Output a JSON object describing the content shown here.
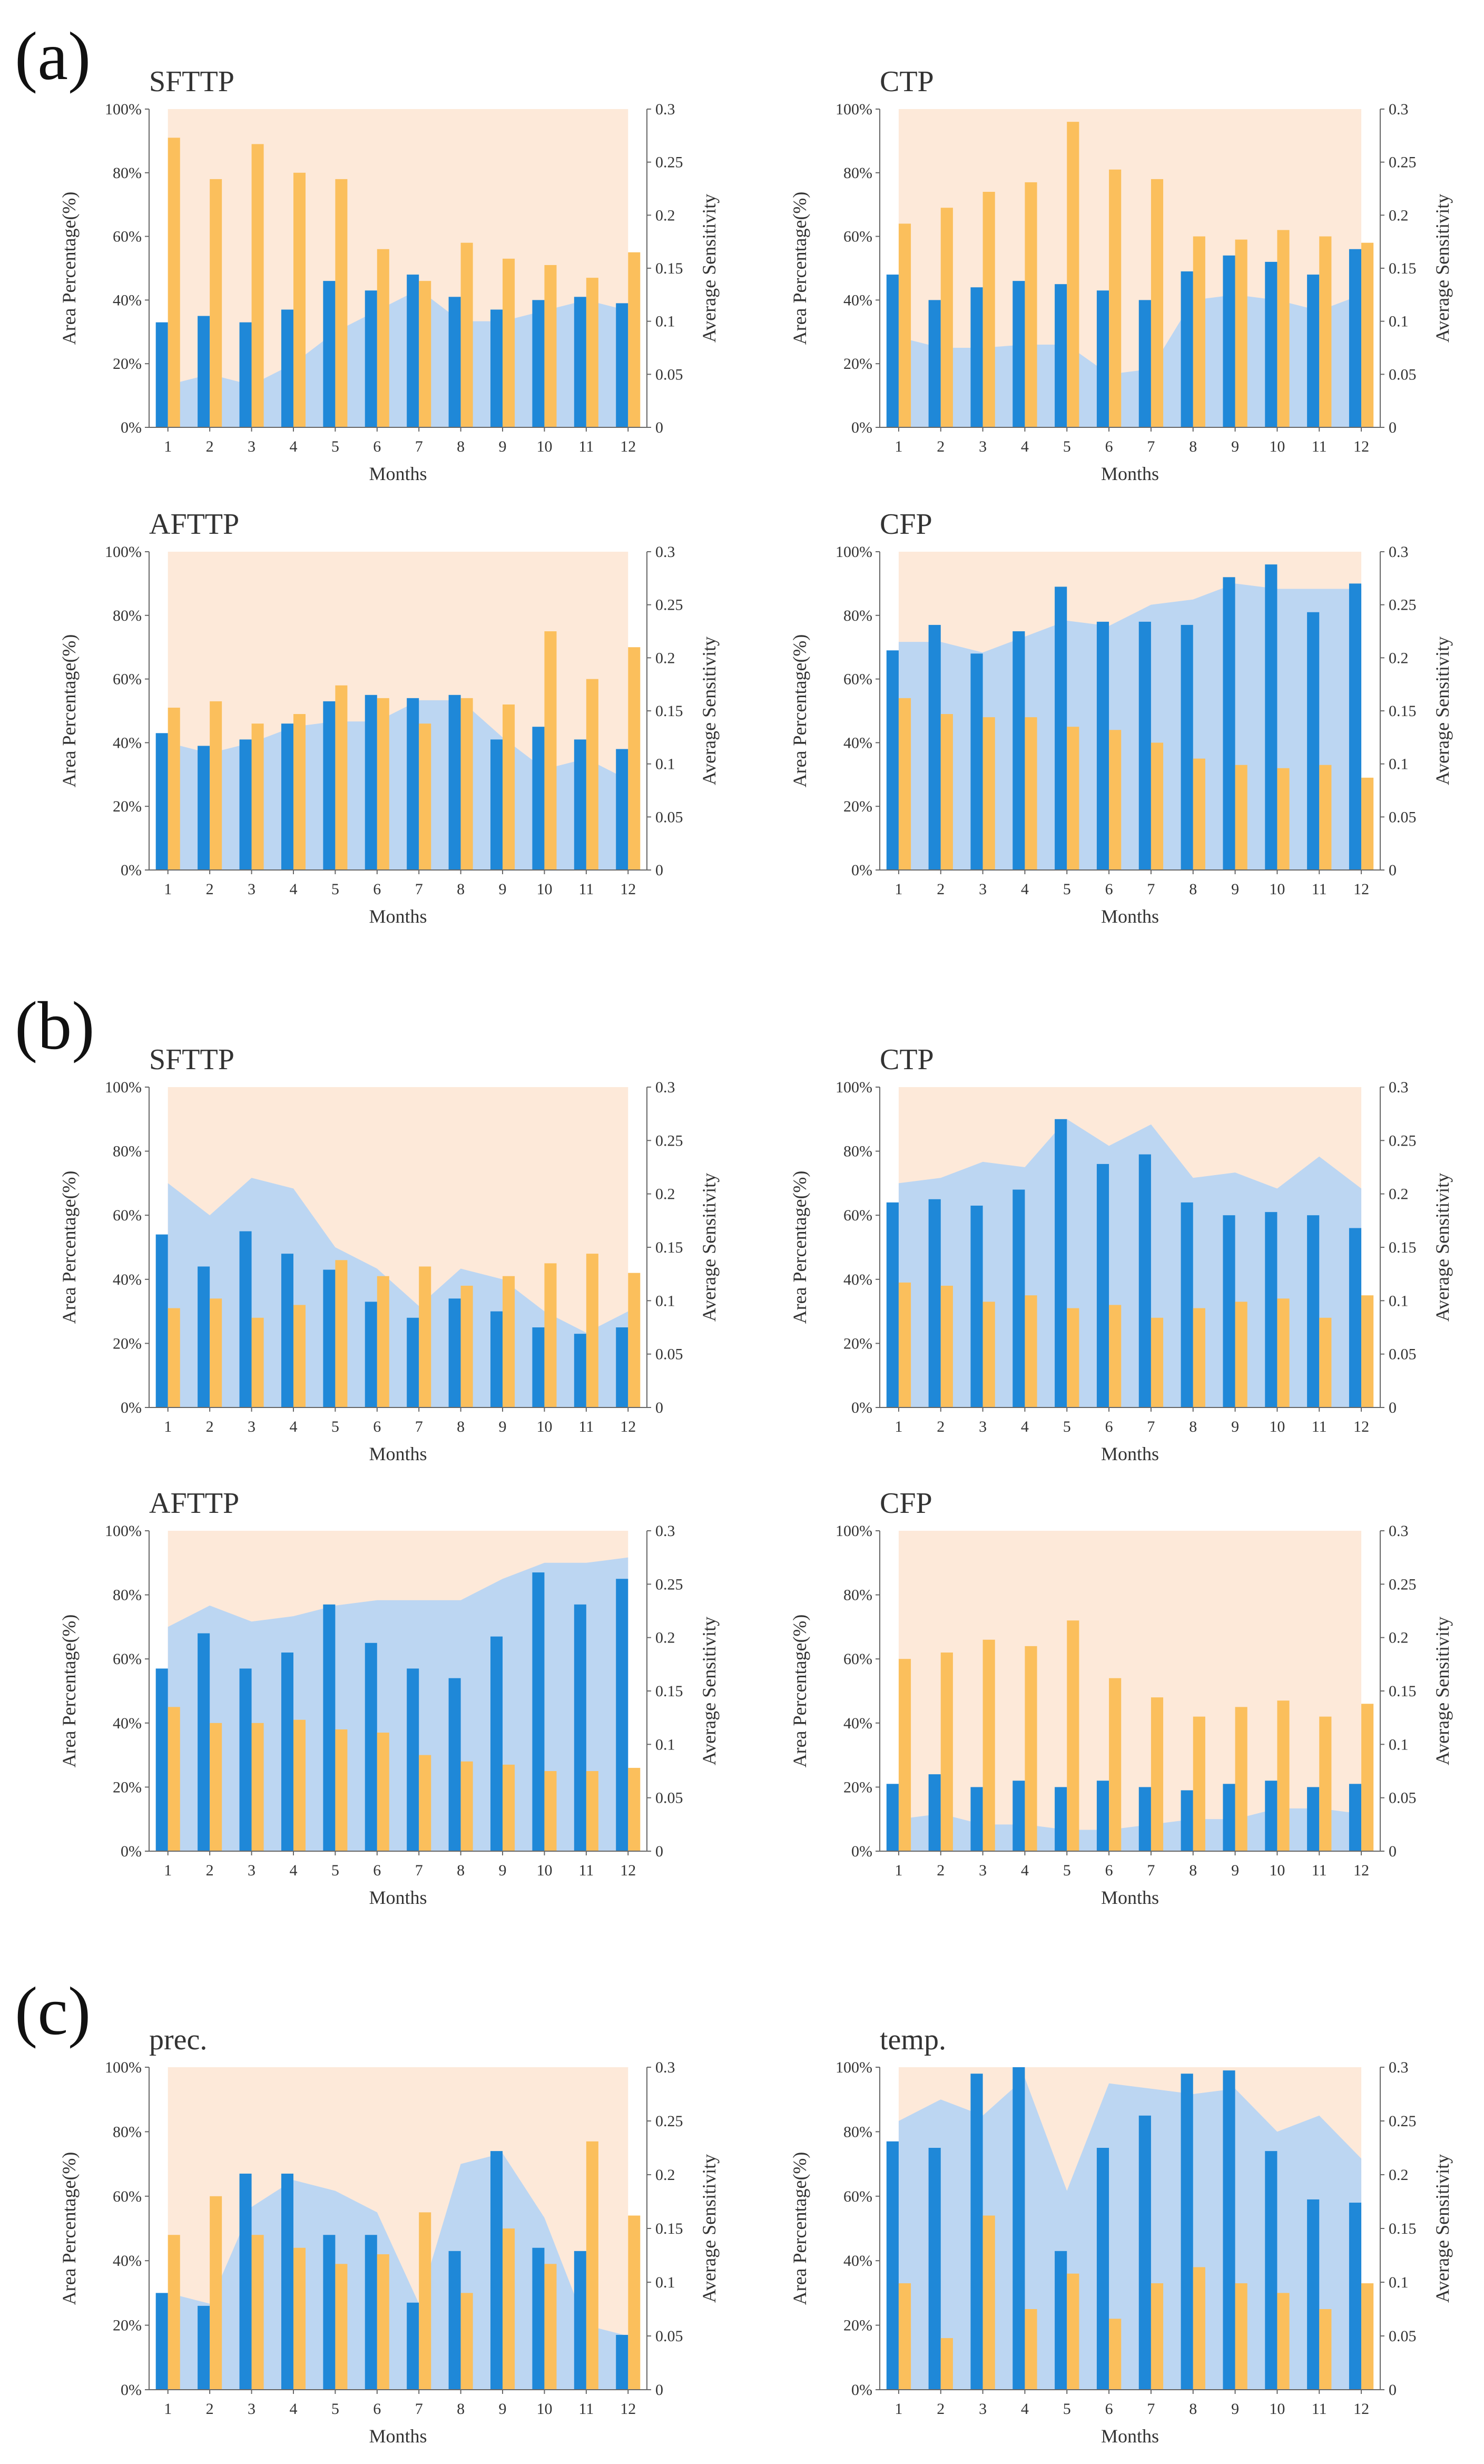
{
  "panels": [
    {
      "label": "(a)"
    },
    {
      "label": "(b)"
    },
    {
      "label": "(c)"
    }
  ],
  "colors": {
    "background_band": "#fde9d9",
    "area_fill": "#bcd6f2",
    "bar_blue": "#1f88d8",
    "bar_orange": "#fbbf5c"
  },
  "chart_data": [
    {
      "type": "bar",
      "panel": "(a)",
      "title": "SFTTP",
      "xlabel": "Months",
      "ylabel": "Area Percentage(%)",
      "y2label": "Average Sensitivity",
      "categories": [
        "1",
        "2",
        "3",
        "4",
        "5",
        "6",
        "7",
        "8",
        "9",
        "10",
        "11",
        "12"
      ],
      "ylim": [
        0,
        100
      ],
      "yticks": [
        "0%",
        "20%",
        "40%",
        "60%",
        "80%",
        "100%"
      ],
      "y2lim": [
        0,
        0.3
      ],
      "y2ticks": [
        "0",
        "0.05",
        "0.1",
        "0.15",
        "0.2",
        "0.25",
        "0.3"
      ],
      "series": [
        {
          "kind": "area",
          "axis": "y2",
          "values": [
            0.04,
            0.05,
            0.04,
            0.06,
            0.09,
            0.11,
            0.13,
            0.1,
            0.1,
            0.11,
            0.12,
            0.11
          ]
        },
        {
          "kind": "bar",
          "axis": "y",
          "values": [
            33,
            35,
            33,
            37,
            46,
            43,
            48,
            41,
            37,
            40,
            41,
            39
          ]
        },
        {
          "kind": "bar",
          "axis": "y",
          "values": [
            91,
            78,
            89,
            80,
            78,
            56,
            46,
            58,
            53,
            51,
            47,
            55
          ]
        }
      ]
    },
    {
      "type": "bar",
      "panel": "(a)",
      "title": "CTP",
      "xlabel": "Months",
      "ylabel": "Area Percentage(%)",
      "y2label": "Average Sensitivity",
      "categories": [
        "1",
        "2",
        "3",
        "4",
        "5",
        "6",
        "7",
        "8",
        "9",
        "10",
        "11",
        "12"
      ],
      "ylim": [
        0,
        100
      ],
      "yticks": [
        "0%",
        "20%",
        "40%",
        "60%",
        "80%",
        "100%"
      ],
      "y2lim": [
        0,
        0.3
      ],
      "y2ticks": [
        "0",
        "0.05",
        "0.1",
        "0.15",
        "0.2",
        "0.25",
        "0.3"
      ],
      "series": [
        {
          "kind": "area",
          "axis": "y2",
          "values": [
            0.085,
            0.075,
            0.075,
            0.078,
            0.078,
            0.05,
            0.055,
            0.12,
            0.125,
            0.12,
            0.11,
            0.125
          ]
        },
        {
          "kind": "bar",
          "axis": "y",
          "values": [
            48,
            40,
            44,
            46,
            45,
            43,
            40,
            49,
            54,
            52,
            48,
            56
          ]
        },
        {
          "kind": "bar",
          "axis": "y",
          "values": [
            64,
            69,
            74,
            77,
            96,
            81,
            78,
            60,
            59,
            62,
            60,
            58
          ]
        }
      ]
    },
    {
      "type": "bar",
      "panel": "(a)",
      "title": "AFTTP",
      "xlabel": "Months",
      "ylabel": "Area Percentage(%)",
      "y2label": "Average Sensitivity",
      "categories": [
        "1",
        "2",
        "3",
        "4",
        "5",
        "6",
        "7",
        "8",
        "9",
        "10",
        "11",
        "12"
      ],
      "ylim": [
        0,
        100
      ],
      "yticks": [
        "0%",
        "20%",
        "40%",
        "60%",
        "80%",
        "100%"
      ],
      "y2lim": [
        0,
        0.3
      ],
      "y2ticks": [
        "0",
        "0.05",
        "0.1",
        "0.15",
        "0.2",
        "0.25",
        "0.3"
      ],
      "series": [
        {
          "kind": "area",
          "axis": "y2",
          "values": [
            0.12,
            0.11,
            0.12,
            0.135,
            0.14,
            0.14,
            0.16,
            0.16,
            0.125,
            0.095,
            0.105,
            0.085
          ]
        },
        {
          "kind": "bar",
          "axis": "y",
          "values": [
            43,
            39,
            41,
            46,
            53,
            55,
            54,
            55,
            41,
            45,
            41,
            38
          ]
        },
        {
          "kind": "bar",
          "axis": "y",
          "values": [
            51,
            53,
            46,
            49,
            58,
            54,
            46,
            54,
            52,
            75,
            60,
            70
          ]
        }
      ]
    },
    {
      "type": "bar",
      "panel": "(a)",
      "title": "CFP",
      "xlabel": "Months",
      "ylabel": "Area Percentage(%)",
      "y2label": "Average Sensitivity",
      "categories": [
        "1",
        "2",
        "3",
        "4",
        "5",
        "6",
        "7",
        "8",
        "9",
        "10",
        "11",
        "12"
      ],
      "ylim": [
        0,
        100
      ],
      "yticks": [
        "0%",
        "20%",
        "40%",
        "60%",
        "80%",
        "100%"
      ],
      "y2lim": [
        0,
        0.3
      ],
      "y2ticks": [
        "0",
        "0.05",
        "0.1",
        "0.15",
        "0.2",
        "0.25",
        "0.3"
      ],
      "series": [
        {
          "kind": "area",
          "axis": "y2",
          "values": [
            0.215,
            0.215,
            0.205,
            0.22,
            0.235,
            0.23,
            0.25,
            0.255,
            0.27,
            0.265,
            0.265,
            0.265
          ]
        },
        {
          "kind": "bar",
          "axis": "y",
          "values": [
            69,
            77,
            68,
            75,
            89,
            78,
            78,
            77,
            92,
            96,
            81,
            90
          ]
        },
        {
          "kind": "bar",
          "axis": "y",
          "values": [
            54,
            49,
            48,
            48,
            45,
            44,
            40,
            35,
            33,
            32,
            33,
            29
          ]
        }
      ]
    },
    {
      "type": "bar",
      "panel": "(b)",
      "title": "SFTTP",
      "xlabel": "Months",
      "ylabel": "Area Percentage(%)",
      "y2label": "Average Sensitivity",
      "categories": [
        "1",
        "2",
        "3",
        "4",
        "5",
        "6",
        "7",
        "8",
        "9",
        "10",
        "11",
        "12"
      ],
      "ylim": [
        0,
        100
      ],
      "yticks": [
        "0%",
        "20%",
        "40%",
        "60%",
        "80%",
        "100%"
      ],
      "y2lim": [
        0,
        0.3
      ],
      "y2ticks": [
        "0",
        "0.05",
        "0.1",
        "0.15",
        "0.2",
        "0.25",
        "0.3"
      ],
      "series": [
        {
          "kind": "area",
          "axis": "y2",
          "values": [
            0.21,
            0.18,
            0.215,
            0.205,
            0.15,
            0.13,
            0.095,
            0.13,
            0.12,
            0.09,
            0.07,
            0.09
          ]
        },
        {
          "kind": "bar",
          "axis": "y",
          "values": [
            54,
            44,
            55,
            48,
            43,
            33,
            28,
            34,
            30,
            25,
            23,
            25
          ]
        },
        {
          "kind": "bar",
          "axis": "y",
          "values": [
            31,
            34,
            28,
            32,
            46,
            41,
            44,
            38,
            41,
            45,
            48,
            42
          ]
        }
      ]
    },
    {
      "type": "bar",
      "panel": "(b)",
      "title": "CTP",
      "xlabel": "Months",
      "ylabel": "Area Percentage(%)",
      "y2label": "Average Sensitivity",
      "categories": [
        "1",
        "2",
        "3",
        "4",
        "5",
        "6",
        "7",
        "8",
        "9",
        "10",
        "11",
        "12"
      ],
      "ylim": [
        0,
        100
      ],
      "yticks": [
        "0%",
        "20%",
        "40%",
        "60%",
        "80%",
        "100%"
      ],
      "y2lim": [
        0,
        0.3
      ],
      "y2ticks": [
        "0",
        "0.05",
        "0.1",
        "0.15",
        "0.2",
        "0.25",
        "0.3"
      ],
      "series": [
        {
          "kind": "area",
          "axis": "y2",
          "values": [
            0.21,
            0.215,
            0.23,
            0.225,
            0.27,
            0.245,
            0.265,
            0.215,
            0.22,
            0.205,
            0.235,
            0.205
          ]
        },
        {
          "kind": "bar",
          "axis": "y",
          "values": [
            64,
            65,
            63,
            68,
            90,
            76,
            79,
            64,
            60,
            61,
            60,
            56
          ]
        },
        {
          "kind": "bar",
          "axis": "y",
          "values": [
            39,
            38,
            33,
            35,
            31,
            32,
            28,
            31,
            33,
            34,
            28,
            35
          ]
        }
      ]
    },
    {
      "type": "bar",
      "panel": "(b)",
      "title": "AFTTP",
      "xlabel": "Months",
      "ylabel": "Area Percentage(%)",
      "y2label": "Average Sensitivity",
      "categories": [
        "1",
        "2",
        "3",
        "4",
        "5",
        "6",
        "7",
        "8",
        "9",
        "10",
        "11",
        "12"
      ],
      "ylim": [
        0,
        100
      ],
      "yticks": [
        "0%",
        "20%",
        "40%",
        "60%",
        "80%",
        "100%"
      ],
      "y2lim": [
        0,
        0.3
      ],
      "y2ticks": [
        "0",
        "0.05",
        "0.1",
        "0.15",
        "0.2",
        "0.25",
        "0.3"
      ],
      "series": [
        {
          "kind": "area",
          "axis": "y2",
          "values": [
            0.21,
            0.23,
            0.215,
            0.22,
            0.23,
            0.235,
            0.235,
            0.235,
            0.255,
            0.27,
            0.27,
            0.275
          ]
        },
        {
          "kind": "bar",
          "axis": "y",
          "values": [
            57,
            68,
            57,
            62,
            77,
            65,
            57,
            54,
            67,
            87,
            77,
            85
          ]
        },
        {
          "kind": "bar",
          "axis": "y",
          "values": [
            45,
            40,
            40,
            41,
            38,
            37,
            30,
            28,
            27,
            25,
            25,
            26
          ]
        }
      ]
    },
    {
      "type": "bar",
      "panel": "(b)",
      "title": "CFP",
      "xlabel": "Months",
      "ylabel": "Area Percentage(%)",
      "y2label": "Average Sensitivity",
      "categories": [
        "1",
        "2",
        "3",
        "4",
        "5",
        "6",
        "7",
        "8",
        "9",
        "10",
        "11",
        "12"
      ],
      "ylim": [
        0,
        100
      ],
      "yticks": [
        "0%",
        "20%",
        "40%",
        "60%",
        "80%",
        "100%"
      ],
      "y2lim": [
        0,
        0.3
      ],
      "y2ticks": [
        "0",
        "0.05",
        "0.1",
        "0.15",
        "0.2",
        "0.25",
        "0.3"
      ],
      "series": [
        {
          "kind": "area",
          "axis": "y2",
          "values": [
            0.03,
            0.035,
            0.025,
            0.025,
            0.02,
            0.02,
            0.025,
            0.03,
            0.03,
            0.04,
            0.04,
            0.035
          ]
        },
        {
          "kind": "bar",
          "axis": "y",
          "values": [
            21,
            24,
            20,
            22,
            20,
            22,
            20,
            19,
            21,
            22,
            20,
            21
          ]
        },
        {
          "kind": "bar",
          "axis": "y",
          "values": [
            60,
            62,
            66,
            64,
            72,
            54,
            48,
            42,
            45,
            47,
            42,
            46
          ]
        }
      ]
    },
    {
      "type": "bar",
      "panel": "(c)",
      "title": "prec.",
      "xlabel": "Months",
      "ylabel": "Area Percentage(%)",
      "y2label": "Average Sensitivity",
      "categories": [
        "1",
        "2",
        "3",
        "4",
        "5",
        "6",
        "7",
        "8",
        "9",
        "10",
        "11",
        "12"
      ],
      "ylim": [
        0,
        100
      ],
      "yticks": [
        "0%",
        "20%",
        "40%",
        "60%",
        "80%",
        "100%"
      ],
      "y2lim": [
        0,
        0.3
      ],
      "y2ticks": [
        "0",
        "0.05",
        "0.1",
        "0.15",
        "0.2",
        "0.25",
        "0.3"
      ],
      "series": [
        {
          "kind": "area",
          "axis": "y2",
          "values": [
            0.09,
            0.08,
            0.17,
            0.195,
            0.185,
            0.165,
            0.08,
            0.21,
            0.22,
            0.16,
            0.06,
            0.05
          ]
        },
        {
          "kind": "bar",
          "axis": "y",
          "values": [
            30,
            26,
            67,
            67,
            48,
            48,
            27,
            43,
            74,
            44,
            43,
            17
          ]
        },
        {
          "kind": "bar",
          "axis": "y",
          "values": [
            48,
            60,
            48,
            44,
            39,
            42,
            55,
            30,
            50,
            39,
            77,
            54
          ]
        }
      ]
    },
    {
      "type": "bar",
      "panel": "(c)",
      "title": "temp.",
      "xlabel": "Months",
      "ylabel": "Area Percentage(%)",
      "y2label": "Average Sensitivity",
      "categories": [
        "1",
        "2",
        "3",
        "4",
        "5",
        "6",
        "7",
        "8",
        "9",
        "10",
        "11",
        "12"
      ],
      "ylim": [
        0,
        100
      ],
      "yticks": [
        "0%",
        "20%",
        "40%",
        "60%",
        "80%",
        "100%"
      ],
      "y2lim": [
        0,
        0.3
      ],
      "y2ticks": [
        "0",
        "0.05",
        "0.1",
        "0.15",
        "0.2",
        "0.25",
        "0.3"
      ],
      "series": [
        {
          "kind": "area",
          "axis": "y2",
          "values": [
            0.25,
            0.27,
            0.255,
            0.29,
            0.185,
            0.285,
            0.28,
            0.275,
            0.28,
            0.24,
            0.255,
            0.215
          ]
        },
        {
          "kind": "bar",
          "axis": "y",
          "values": [
            77,
            75,
            98,
            100,
            43,
            75,
            85,
            98,
            99,
            74,
            59,
            58
          ]
        },
        {
          "kind": "bar",
          "axis": "y",
          "values": [
            33,
            16,
            54,
            25,
            36,
            22,
            33,
            38,
            33,
            30,
            25,
            33
          ]
        }
      ]
    }
  ]
}
